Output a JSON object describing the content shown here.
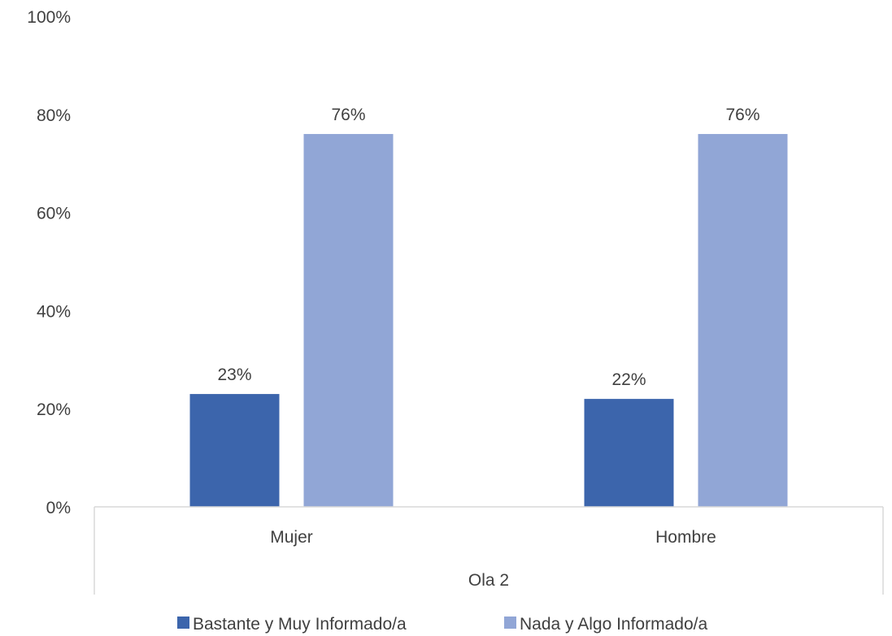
{
  "chart_data": {
    "type": "bar",
    "categories": [
      "Mujer",
      "Hombre"
    ],
    "group_label": "Ola 2",
    "series": [
      {
        "name": "Bastante y Muy Informado/a",
        "values": [
          23,
          22
        ],
        "labels": [
          "23%",
          "22%"
        ],
        "color": "#3C65AC"
      },
      {
        "name": "Nada y Algo Informado/a",
        "values": [
          76,
          76
        ],
        "labels": [
          "76%",
          "76%"
        ],
        "color": "#91A6D6"
      }
    ],
    "ylim": [
      0,
      100
    ],
    "yticks": [
      0,
      20,
      40,
      60,
      80,
      100
    ],
    "ytick_labels": [
      "0%",
      "20%",
      "40%",
      "60%",
      "80%",
      "100%"
    ],
    "grid": false,
    "legend_position": "bottom",
    "text_color": "#404040",
    "axis_color": "#D9D9D9"
  }
}
